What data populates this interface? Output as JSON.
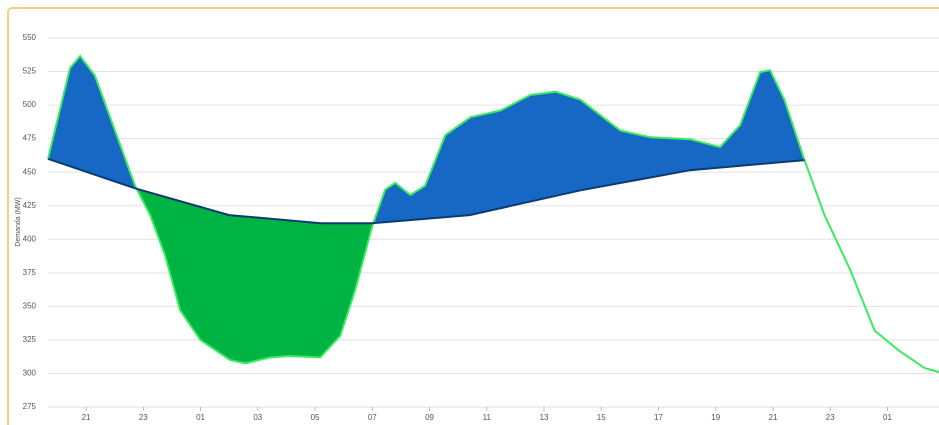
{
  "chart_data": {
    "type": "difference-area",
    "y_label": "Demanda (MW)",
    "xlim": [
      -1.33,
      29.8
    ],
    "xticks": [
      {
        "value": 0,
        "label": "21"
      },
      {
        "value": 2,
        "label": "23"
      },
      {
        "value": 4,
        "label": "01"
      },
      {
        "value": 6,
        "label": "03"
      },
      {
        "value": 8,
        "label": "05"
      },
      {
        "value": 10,
        "label": "07"
      },
      {
        "value": 12,
        "label": "09"
      },
      {
        "value": 14,
        "label": "11"
      },
      {
        "value": 16,
        "label": "13"
      },
      {
        "value": 18,
        "label": "15"
      },
      {
        "value": 20,
        "label": "17"
      },
      {
        "value": 22,
        "label": "19"
      },
      {
        "value": 24,
        "label": "21"
      },
      {
        "value": 26,
        "label": "23"
      },
      {
        "value": 28,
        "label": "01"
      }
    ],
    "ylim": [
      275,
      550
    ],
    "yticks": [
      275,
      300,
      325,
      350,
      375,
      400,
      425,
      450,
      475,
      500,
      525,
      550
    ],
    "grid": true,
    "above_color": "#1668c4",
    "below_color": "#00b444",
    "series": [
      {
        "color": "#39ec5e",
        "x": [
          -1.33,
          -0.56,
          -0.21,
          0.31,
          1.01,
          1.71,
          2.24,
          2.76,
          3.29,
          3.99,
          5.03,
          5.56,
          6.43,
          7.13,
          8.18,
          8.88,
          9.4,
          10.0,
          10.45,
          10.8,
          11.33,
          11.85,
          12.55,
          13.43,
          14.48,
          15.52,
          16.4,
          17.27,
          17.97,
          18.67,
          19.72,
          21.1,
          22.15,
          22.85,
          23.55,
          23.9,
          24.4,
          25.1,
          25.8,
          26.7,
          27.55,
          28.4,
          29.3,
          29.8
        ],
        "values": [
          460,
          527.6,
          536.6,
          522,
          481,
          440,
          418,
          388,
          347,
          325,
          310,
          307.5,
          312,
          313,
          312,
          328,
          362,
          410,
          437,
          442,
          433,
          440,
          477.6,
          491,
          496,
          507.5,
          510,
          504,
          492.5,
          481,
          476,
          474.6,
          468.7,
          485,
          524.6,
          526,
          504,
          459,
          418,
          377,
          332,
          317,
          304,
          301
        ]
      },
      {
        "color": "#0d3a73",
        "x": [
          -1.33,
          1.71,
          5.0,
          8.2,
          10.0,
          13.4,
          17.3,
          21.1,
          25.1
        ],
        "values": [
          460,
          438,
          418,
          412,
          412,
          418,
          436.6,
          451.5,
          459
        ]
      }
    ]
  }
}
